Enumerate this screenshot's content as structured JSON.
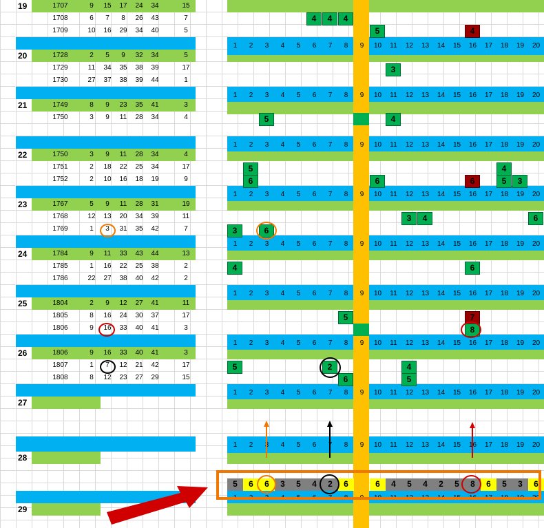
{
  "groups": [
    "19",
    "20",
    "21",
    "22",
    "23",
    "24",
    "25",
    "26",
    "27",
    "28",
    "29"
  ],
  "num_header": [
    "1",
    "2",
    "3",
    "4",
    "5",
    "6",
    "7",
    "8",
    "9",
    "10",
    "11",
    "12",
    "13",
    "14",
    "15",
    "16",
    "17",
    "18",
    "19",
    "20"
  ],
  "rows": [
    {
      "id": "1707",
      "a": "9",
      "b": "15",
      "c": "17",
      "d": "24",
      "e": "34",
      "f": "15"
    },
    {
      "id": "1708",
      "a": "6",
      "b": "7",
      "c": "8",
      "d": "26",
      "e": "43",
      "f": "7"
    },
    {
      "id": "1709",
      "a": "10",
      "b": "16",
      "c": "29",
      "d": "34",
      "e": "40",
      "f": "5"
    },
    {
      "id": "1728",
      "a": "2",
      "b": "5",
      "c": "9",
      "d": "32",
      "e": "34",
      "f": "5"
    },
    {
      "id": "1729",
      "a": "11",
      "b": "34",
      "c": "35",
      "d": "38",
      "e": "39",
      "f": "17"
    },
    {
      "id": "1730",
      "a": "27",
      "b": "37",
      "c": "38",
      "d": "39",
      "e": "44",
      "f": "1"
    },
    {
      "id": "1749",
      "a": "8",
      "b": "9",
      "c": "23",
      "d": "35",
      "e": "41",
      "f": "3"
    },
    {
      "id": "1750",
      "a": "3",
      "b": "9",
      "c": "11",
      "d": "28",
      "e": "34",
      "f": "4"
    },
    {
      "id": "1750",
      "a": "3",
      "b": "9",
      "c": "11",
      "d": "28",
      "e": "34",
      "f": "4"
    },
    {
      "id": "1751",
      "a": "2",
      "b": "18",
      "c": "22",
      "d": "25",
      "e": "34",
      "f": "17"
    },
    {
      "id": "1752",
      "a": "2",
      "b": "10",
      "c": "16",
      "d": "18",
      "e": "19",
      "f": "9"
    },
    {
      "id": "1767",
      "a": "5",
      "b": "9",
      "c": "11",
      "d": "28",
      "e": "31",
      "f": "19"
    },
    {
      "id": "1768",
      "a": "12",
      "b": "13",
      "c": "20",
      "d": "34",
      "e": "39",
      "f": "11"
    },
    {
      "id": "1769",
      "a": "1",
      "b": "3",
      "c": "31",
      "d": "35",
      "e": "42",
      "f": "7"
    },
    {
      "id": "1784",
      "a": "9",
      "b": "11",
      "c": "33",
      "d": "43",
      "e": "44",
      "f": "13"
    },
    {
      "id": "1785",
      "a": "1",
      "b": "16",
      "c": "22",
      "d": "25",
      "e": "38",
      "f": "2"
    },
    {
      "id": "1786",
      "a": "22",
      "b": "27",
      "c": "38",
      "d": "40",
      "e": "42",
      "f": "2"
    },
    {
      "id": "1804",
      "a": "2",
      "b": "9",
      "c": "12",
      "d": "27",
      "e": "41",
      "f": "11"
    },
    {
      "id": "1805",
      "a": "8",
      "b": "16",
      "c": "24",
      "d": "30",
      "e": "37",
      "f": "17"
    },
    {
      "id": "1806",
      "a": "9",
      "b": "16",
      "c": "33",
      "d": "40",
      "e": "41",
      "f": "3"
    },
    {
      "id": "1806",
      "a": "9",
      "b": "16",
      "c": "33",
      "d": "40",
      "e": "41",
      "f": "3"
    },
    {
      "id": "1807",
      "a": "1",
      "b": "7",
      "c": "12",
      "d": "21",
      "e": "42",
      "f": "17"
    },
    {
      "id": "1808",
      "a": "8",
      "b": "12",
      "c": "23",
      "d": "27",
      "e": "29",
      "f": "15"
    }
  ],
  "marks": {
    "m1708_6": "4",
    "m1708_7": "4",
    "m1708_8": "4",
    "m1709_10": "5",
    "m1709_16": "4",
    "m1729_11": "3",
    "m1750_3": "5",
    "m1750_11": "4",
    "m1751_2": "5",
    "m1751_18": "4",
    "m1752_2": "6",
    "m1752_10": "6",
    "m1752_16": "6",
    "m1752_18": "5",
    "m1752_19": "3",
    "m1768_12": "3",
    "m1768_13": "4",
    "m1768_20": "6",
    "m1769_1": "3",
    "m1769_3": "6",
    "m1785_1": "4",
    "m1785_16": "6",
    "m1805_8": "5",
    "m1805_16": "7",
    "m1806_16": "8",
    "m1807_1": "5",
    "m1807_7": "2",
    "m1807_12": "4",
    "m1808_8": "6",
    "m1808_12": "5"
  },
  "result_row": [
    "5",
    "6",
    "6",
    "3",
    "5",
    "4",
    "2",
    "6",
    "",
    "6",
    "4",
    "5",
    "4",
    "2",
    "5",
    "8",
    "6",
    "5",
    "3",
    "6"
  ],
  "colors": {
    "blue": "#00b0f0",
    "green": "#92d050",
    "orange": "#ffc000",
    "mark_green": "#00b050",
    "mark_red": "#990000",
    "highlight_box": "#f07800",
    "arrow": "#d00000"
  }
}
